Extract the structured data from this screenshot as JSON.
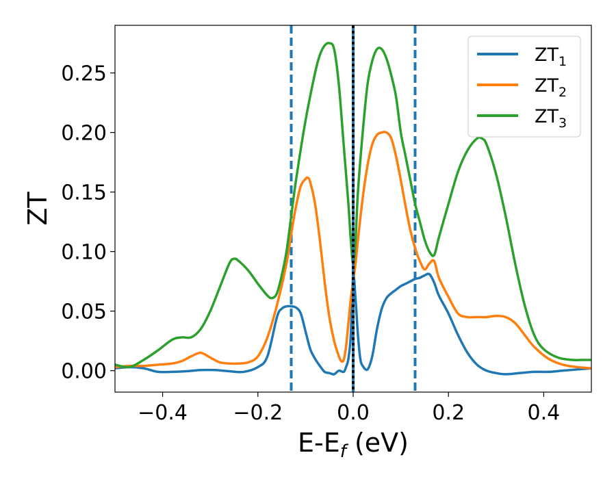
{
  "chart_data": {
    "type": "line",
    "title": "",
    "xlabel": "E-E",
    "xlabel_subscript": "f",
    "xlabel_unit": " (eV)",
    "ylabel": "ZT",
    "xlim": [
      -0.5,
      0.5
    ],
    "ylim": [
      -0.018,
      0.29
    ],
    "x_ticks": [
      -0.4,
      -0.2,
      0.0,
      0.2,
      0.4
    ],
    "x_tick_labels": [
      "−0.4",
      "−0.2",
      "0.0",
      "0.2",
      "0.4"
    ],
    "y_ticks": [
      0.0,
      0.05,
      0.1,
      0.15,
      0.2,
      0.25
    ],
    "y_tick_labels": [
      "0.00",
      "0.05",
      "0.10",
      "0.15",
      "0.20",
      "0.25"
    ],
    "grid": false,
    "legend_position": "top-right",
    "series": [
      {
        "name": "ZT",
        "name_subscript": "1",
        "color": "#1f77b4",
        "x": [
          -0.5,
          -0.47,
          -0.44,
          -0.41,
          -0.38,
          -0.35,
          -0.32,
          -0.29,
          -0.26,
          -0.23,
          -0.2,
          -0.18,
          -0.16,
          -0.15,
          -0.14,
          -0.13,
          -0.12,
          -0.11,
          -0.1,
          -0.09,
          -0.08,
          -0.07,
          -0.06,
          -0.05,
          -0.04,
          -0.03,
          -0.02,
          -0.015,
          -0.01,
          -0.005,
          0.0,
          0.005,
          0.01,
          0.015,
          0.02,
          0.03,
          0.04,
          0.05,
          0.06,
          0.07,
          0.08,
          0.09,
          0.1,
          0.11,
          0.12,
          0.13,
          0.14,
          0.15,
          0.16,
          0.17,
          0.18,
          0.2,
          0.22,
          0.24,
          0.26,
          0.28,
          0.3,
          0.32,
          0.35,
          0.38,
          0.41,
          0.44,
          0.47,
          0.5
        ],
        "values": [
          0.002,
          0.003,
          0.002,
          -0.001,
          -0.001,
          -0.0005,
          0.0005,
          0.0005,
          -0.0005,
          -0.001,
          0.003,
          0.012,
          0.045,
          0.052,
          0.054,
          0.054,
          0.053,
          0.048,
          0.033,
          0.018,
          0.01,
          0.004,
          -0.001,
          -0.002,
          -0.003,
          0.0,
          -0.001,
          0.003,
          0.01,
          0.03,
          0.08,
          0.06,
          0.03,
          0.01,
          0.004,
          0.001,
          0.012,
          0.035,
          0.052,
          0.061,
          0.065,
          0.068,
          0.071,
          0.073,
          0.075,
          0.077,
          0.078,
          0.08,
          0.081,
          0.074,
          0.063,
          0.048,
          0.03,
          0.015,
          0.005,
          0.0,
          -0.002,
          -0.003,
          -0.002,
          -0.001,
          -0.001,
          0.0,
          0.001,
          0.002
        ]
      },
      {
        "name": "ZT",
        "name_subscript": "2",
        "color": "#ff7f0e",
        "x": [
          -0.5,
          -0.47,
          -0.44,
          -0.41,
          -0.38,
          -0.36,
          -0.34,
          -0.32,
          -0.3,
          -0.28,
          -0.26,
          -0.24,
          -0.22,
          -0.2,
          -0.18,
          -0.16,
          -0.14,
          -0.13,
          -0.12,
          -0.11,
          -0.1,
          -0.095,
          -0.09,
          -0.08,
          -0.07,
          -0.06,
          -0.05,
          -0.04,
          -0.03,
          -0.025,
          -0.02,
          -0.015,
          -0.01,
          -0.005,
          0.0,
          0.005,
          0.01,
          0.02,
          0.03,
          0.04,
          0.05,
          0.06,
          0.07,
          0.08,
          0.09,
          0.1,
          0.11,
          0.12,
          0.13,
          0.14,
          0.15,
          0.16,
          0.17,
          0.18,
          0.2,
          0.22,
          0.24,
          0.26,
          0.28,
          0.3,
          0.32,
          0.34,
          0.36,
          0.38,
          0.41,
          0.44,
          0.47,
          0.5
        ],
        "values": [
          0.003,
          0.004,
          0.004,
          0.005,
          0.006,
          0.008,
          0.012,
          0.015,
          0.011,
          0.007,
          0.006,
          0.006,
          0.007,
          0.012,
          0.028,
          0.055,
          0.09,
          0.115,
          0.138,
          0.155,
          0.161,
          0.162,
          0.158,
          0.14,
          0.11,
          0.075,
          0.045,
          0.025,
          0.012,
          0.008,
          0.009,
          0.02,
          0.04,
          0.06,
          0.075,
          0.09,
          0.11,
          0.145,
          0.172,
          0.19,
          0.198,
          0.2,
          0.2,
          0.195,
          0.18,
          0.16,
          0.138,
          0.118,
          0.103,
          0.092,
          0.085,
          0.09,
          0.092,
          0.078,
          0.062,
          0.048,
          0.045,
          0.045,
          0.045,
          0.046,
          0.045,
          0.04,
          0.03,
          0.02,
          0.01,
          0.005,
          0.003,
          0.002
        ]
      },
      {
        "name": "ZT",
        "name_subscript": "3",
        "color": "#2ca02c",
        "x": [
          -0.5,
          -0.47,
          -0.44,
          -0.41,
          -0.38,
          -0.36,
          -0.34,
          -0.32,
          -0.3,
          -0.28,
          -0.26,
          -0.25,
          -0.24,
          -0.22,
          -0.2,
          -0.18,
          -0.17,
          -0.16,
          -0.15,
          -0.14,
          -0.13,
          -0.12,
          -0.1,
          -0.08,
          -0.07,
          -0.06,
          -0.05,
          -0.04,
          -0.03,
          -0.02,
          -0.01,
          -0.005,
          0.0,
          0.005,
          0.01,
          0.02,
          0.03,
          0.04,
          0.05,
          0.06,
          0.07,
          0.08,
          0.09,
          0.1,
          0.11,
          0.12,
          0.13,
          0.14,
          0.15,
          0.16,
          0.17,
          0.18,
          0.2,
          0.22,
          0.24,
          0.26,
          0.27,
          0.28,
          0.3,
          0.32,
          0.34,
          0.36,
          0.38,
          0.4,
          0.43,
          0.46,
          0.48,
          0.5
        ],
        "values": [
          0.005,
          0.003,
          0.009,
          0.017,
          0.026,
          0.028,
          0.028,
          0.035,
          0.05,
          0.07,
          0.09,
          0.094,
          0.092,
          0.084,
          0.073,
          0.063,
          0.061,
          0.065,
          0.08,
          0.1,
          0.13,
          0.16,
          0.21,
          0.25,
          0.265,
          0.273,
          0.275,
          0.27,
          0.24,
          0.19,
          0.14,
          0.11,
          0.09,
          0.11,
          0.15,
          0.2,
          0.24,
          0.26,
          0.27,
          0.27,
          0.262,
          0.248,
          0.23,
          0.2,
          0.18,
          0.16,
          0.14,
          0.125,
          0.11,
          0.1,
          0.097,
          0.112,
          0.14,
          0.167,
          0.185,
          0.195,
          0.195,
          0.19,
          0.165,
          0.13,
          0.09,
          0.055,
          0.03,
          0.018,
          0.011,
          0.009,
          0.009,
          0.009
        ]
      }
    ],
    "vertical_lines": [
      {
        "x": -0.13,
        "color": "#1f77b4",
        "style": "dashed"
      },
      {
        "x": 0.0,
        "color": "#1f77b4",
        "style": "solid"
      },
      {
        "x": 0.0,
        "color": "#000000",
        "style": "dotted"
      },
      {
        "x": 0.13,
        "color": "#1f77b4",
        "style": "dashed"
      }
    ]
  }
}
